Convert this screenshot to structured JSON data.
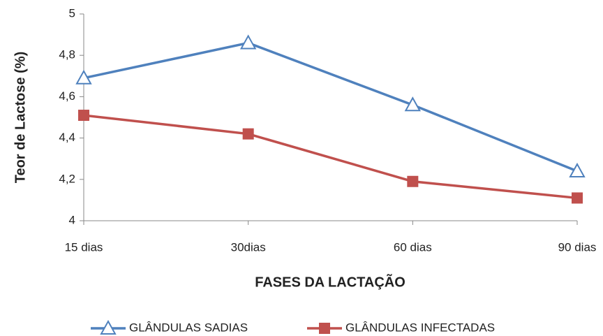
{
  "chart_data": {
    "type": "line",
    "x_label": "FASES DA LACTAÇÃO",
    "y_label": "Teor  de Lactose (%)",
    "categories": [
      "15 dias",
      "30dias",
      "60 dias",
      "90 dias"
    ],
    "series": [
      {
        "name": "GLÂNDULAS SADIAS",
        "color": "#4f81bd",
        "marker": "triangle",
        "values": [
          4.69,
          4.86,
          4.56,
          4.24
        ]
      },
      {
        "name": "GLÂNDULAS INFECTADAS",
        "color": "#c0504d",
        "marker": "square",
        "values": [
          4.51,
          4.42,
          4.19,
          4.11
        ]
      }
    ],
    "ylim": [
      4,
      5
    ],
    "yticks": [
      4,
      {
        "value": 4.2,
        "label": "4,2"
      },
      {
        "value": 4.4,
        "label": "4,4"
      },
      {
        "value": 4.6,
        "label": "4,6"
      },
      {
        "value": 4.8,
        "label": "4,8"
      },
      5
    ],
    "legend": "bottom"
  }
}
